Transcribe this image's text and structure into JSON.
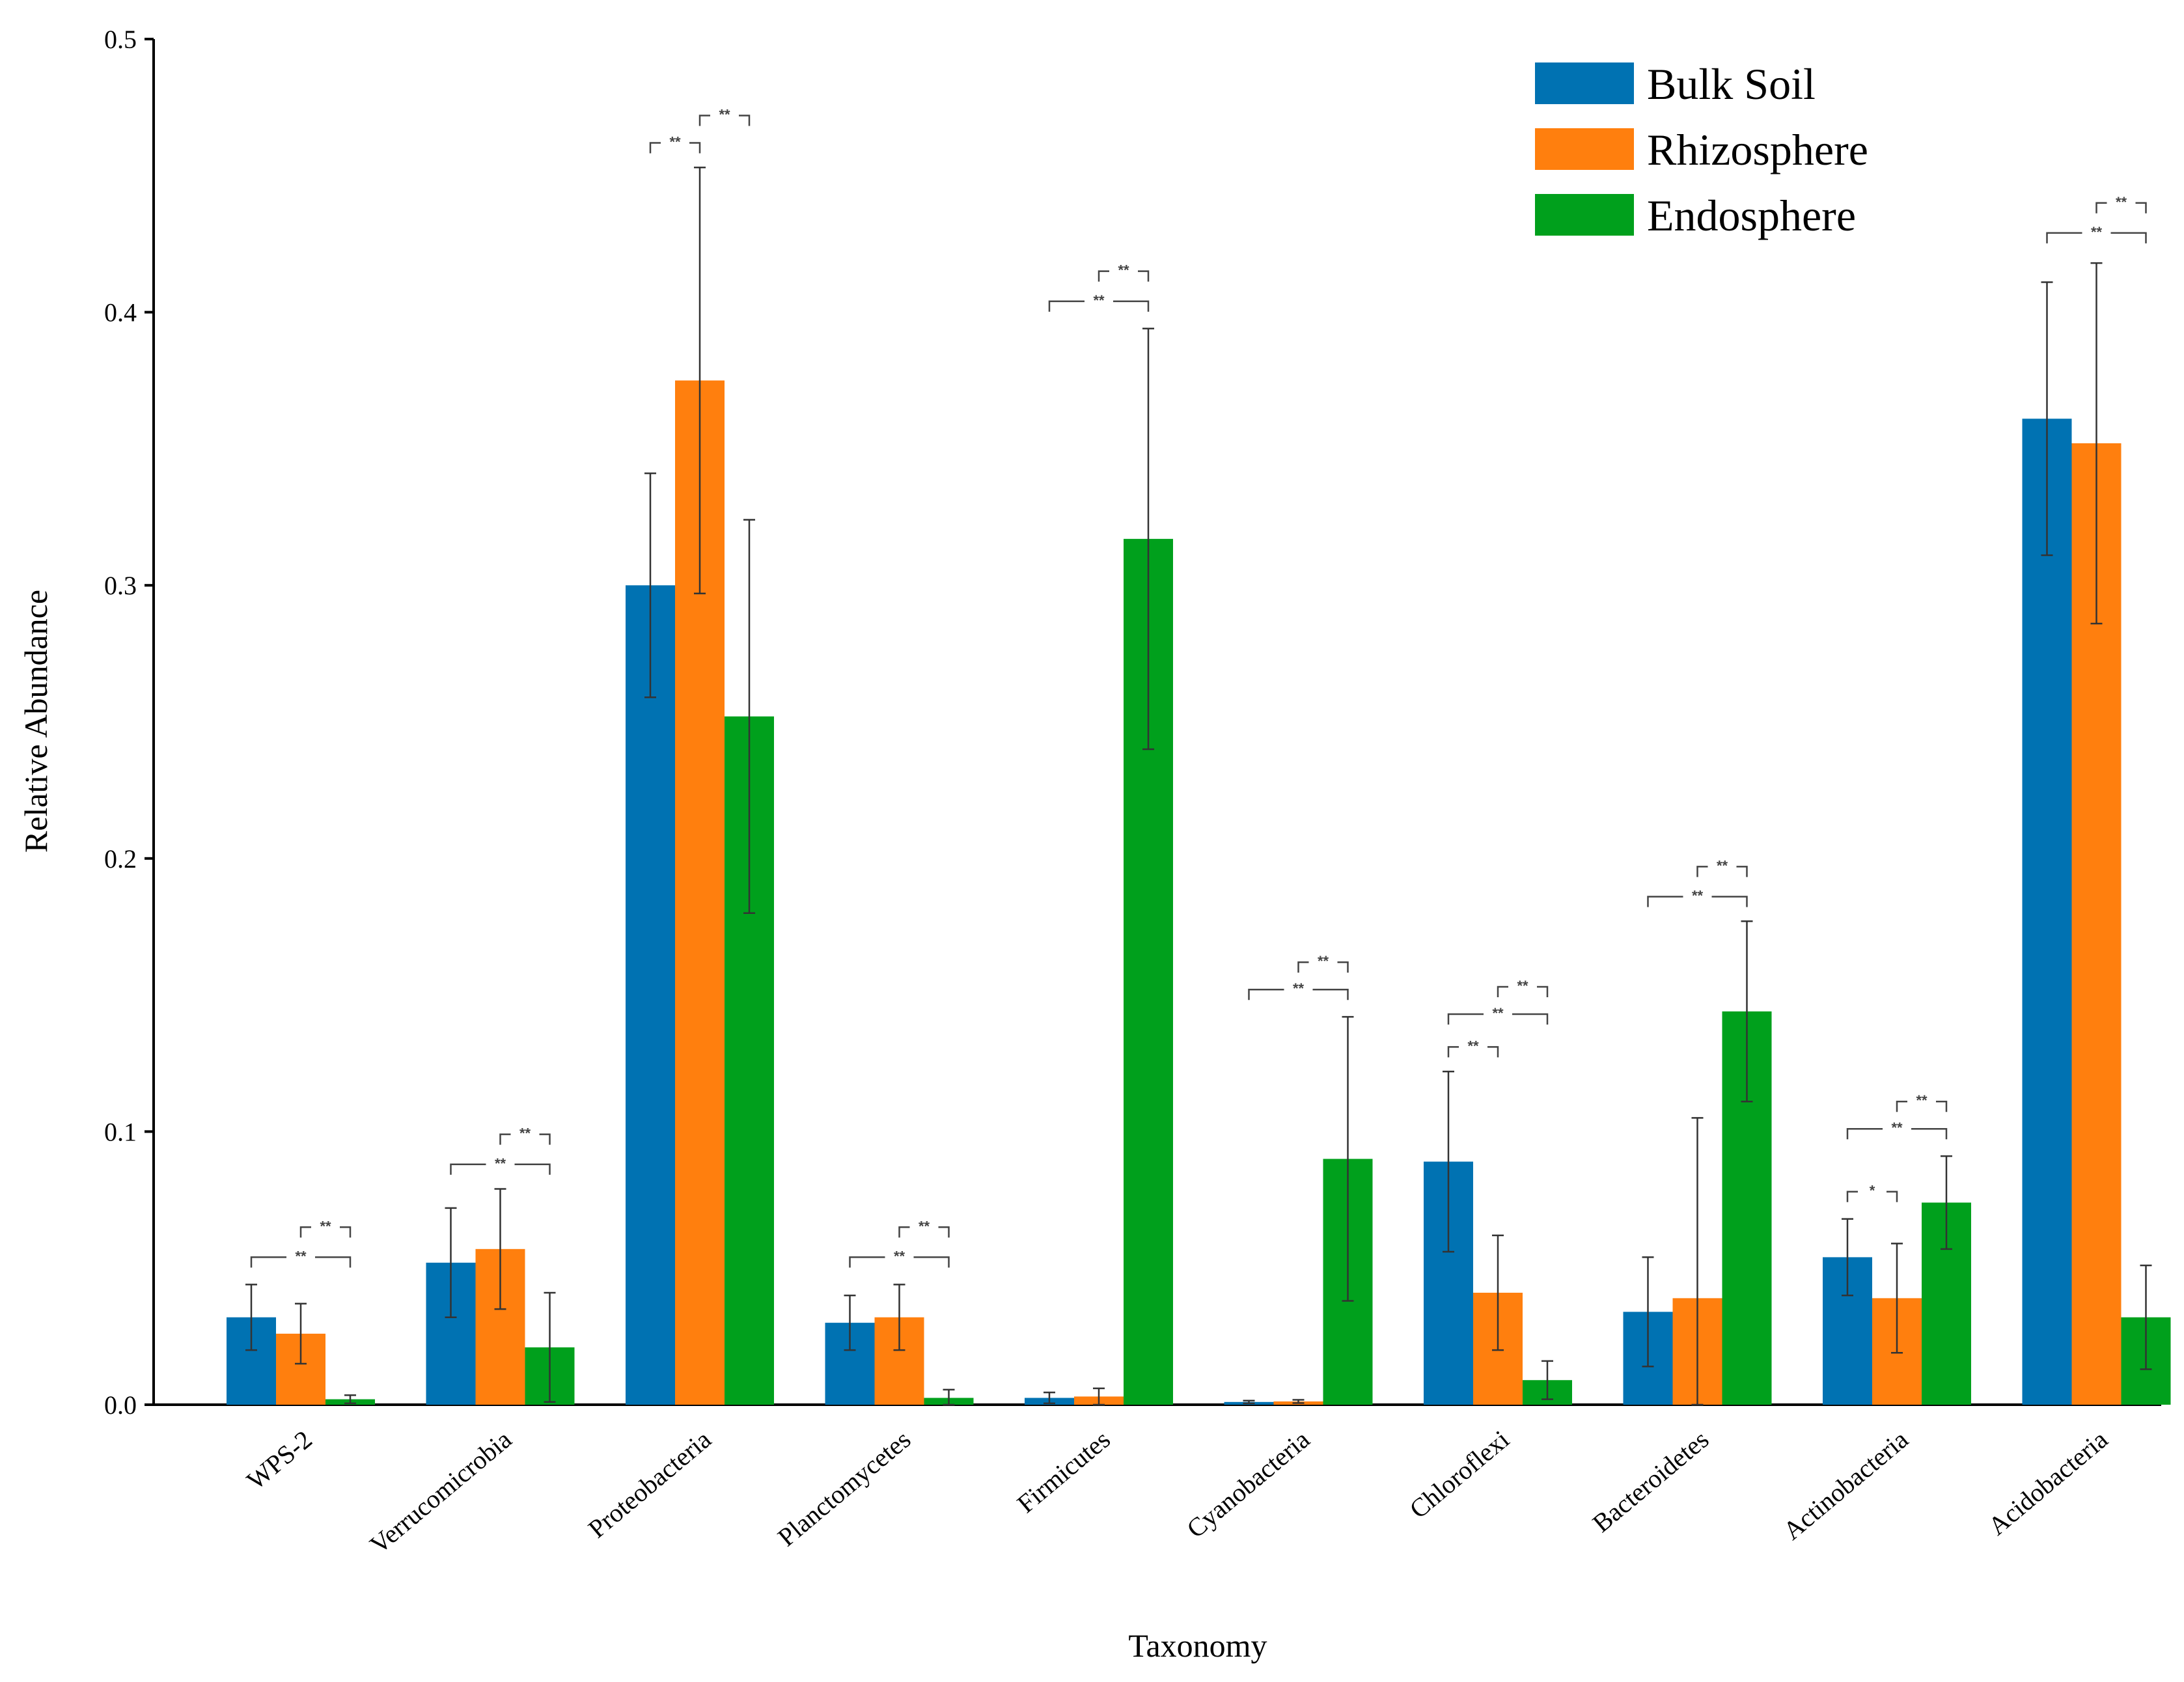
{
  "chart_data": {
    "type": "bar",
    "xlabel": "Taxonomy",
    "ylabel": "Relative Abundance",
    "ylim": [
      0,
      0.5
    ],
    "yticks": [
      "0.0",
      "0.1",
      "0.2",
      "0.3",
      "0.4",
      "0.5"
    ],
    "ytick_values": [
      0,
      0.1,
      0.2,
      0.3,
      0.4,
      0.5
    ],
    "legend_position": "top-right",
    "categories": [
      "WPS-2",
      "Verrucomicrobia",
      "Proteobacteria",
      "Planctomycetes",
      "Firmicutes",
      "Cyanobacteria",
      "Chloroflexi",
      "Bacteroidetes",
      "Actinobacteria",
      "Acidobacteria"
    ],
    "series": [
      {
        "name": "Bulk Soil",
        "color": "#0072b2",
        "values": [
          0.032,
          0.052,
          0.3,
          0.03,
          0.0025,
          0.001,
          0.089,
          0.034,
          0.054,
          0.361
        ],
        "errors": [
          0.012,
          0.02,
          0.041,
          0.01,
          0.002,
          0.0005,
          0.033,
          0.02,
          0.014,
          0.05
        ]
      },
      {
        "name": "Rhizosphere",
        "color": "#ff7f0e",
        "values": [
          0.026,
          0.057,
          0.375,
          0.032,
          0.003,
          0.0012,
          0.041,
          0.039,
          0.039,
          0.352
        ],
        "errors": [
          0.011,
          0.022,
          0.078,
          0.012,
          0.003,
          0.0006,
          0.021,
          0.066,
          0.02,
          0.066
        ]
      },
      {
        "name": "Endosphere",
        "color": "#00a01c",
        "values": [
          0.002,
          0.021,
          0.252,
          0.0025,
          0.317,
          0.09,
          0.009,
          0.144,
          0.074,
          0.032
        ],
        "errors": [
          0.0015,
          0.02,
          0.072,
          0.003,
          0.077,
          0.052,
          0.007,
          0.033,
          0.017,
          0.019
        ]
      }
    ],
    "significance": [
      {
        "category": "WPS-2",
        "from": "Bulk Soil",
        "to": "Endosphere",
        "level": 0.054,
        "label": "**"
      },
      {
        "category": "WPS-2",
        "from": "Rhizosphere",
        "to": "Endosphere",
        "level": 0.065,
        "label": "**"
      },
      {
        "category": "Verrucomicrobia",
        "from": "Bulk Soil",
        "to": "Endosphere",
        "level": 0.088,
        "label": "**"
      },
      {
        "category": "Verrucomicrobia",
        "from": "Rhizosphere",
        "to": "Endosphere",
        "level": 0.099,
        "label": "**"
      },
      {
        "category": "Proteobacteria",
        "from": "Bulk Soil",
        "to": "Rhizosphere",
        "level": 0.462,
        "label": "**"
      },
      {
        "category": "Proteobacteria",
        "from": "Rhizosphere",
        "to": "Endosphere",
        "level": 0.472,
        "label": "**"
      },
      {
        "category": "Planctomycetes",
        "from": "Bulk Soil",
        "to": "Endosphere",
        "level": 0.054,
        "label": "**"
      },
      {
        "category": "Planctomycetes",
        "from": "Rhizosphere",
        "to": "Endosphere",
        "level": 0.065,
        "label": "**"
      },
      {
        "category": "Firmicutes",
        "from": "Bulk Soil",
        "to": "Endosphere",
        "level": 0.404,
        "label": "**"
      },
      {
        "category": "Firmicutes",
        "from": "Rhizosphere",
        "to": "Endosphere",
        "level": 0.415,
        "label": "**"
      },
      {
        "category": "Cyanobacteria",
        "from": "Bulk Soil",
        "to": "Endosphere",
        "level": 0.152,
        "label": "**"
      },
      {
        "category": "Cyanobacteria",
        "from": "Rhizosphere",
        "to": "Endosphere",
        "level": 0.162,
        "label": "**"
      },
      {
        "category": "Chloroflexi",
        "from": "Bulk Soil",
        "to": "Rhizosphere",
        "level": 0.131,
        "label": "**"
      },
      {
        "category": "Chloroflexi",
        "from": "Bulk Soil",
        "to": "Endosphere",
        "level": 0.143,
        "label": "**"
      },
      {
        "category": "Chloroflexi",
        "from": "Rhizosphere",
        "to": "Endosphere",
        "level": 0.153,
        "label": "**"
      },
      {
        "category": "Bacteroidetes",
        "from": "Bulk Soil",
        "to": "Endosphere",
        "level": 0.186,
        "label": "**"
      },
      {
        "category": "Bacteroidetes",
        "from": "Rhizosphere",
        "to": "Endosphere",
        "level": 0.197,
        "label": "**"
      },
      {
        "category": "Actinobacteria",
        "from": "Bulk Soil",
        "to": "Rhizosphere",
        "level": 0.078,
        "label": "*"
      },
      {
        "category": "Actinobacteria",
        "from": "Bulk Soil",
        "to": "Endosphere",
        "level": 0.101,
        "label": "**"
      },
      {
        "category": "Actinobacteria",
        "from": "Rhizosphere",
        "to": "Endosphere",
        "level": 0.111,
        "label": "**"
      },
      {
        "category": "Acidobacteria",
        "from": "Bulk Soil",
        "to": "Endosphere",
        "level": 0.429,
        "label": "**"
      },
      {
        "category": "Acidobacteria",
        "from": "Rhizosphere",
        "to": "Endosphere",
        "level": 0.44,
        "label": "**"
      }
    ]
  }
}
